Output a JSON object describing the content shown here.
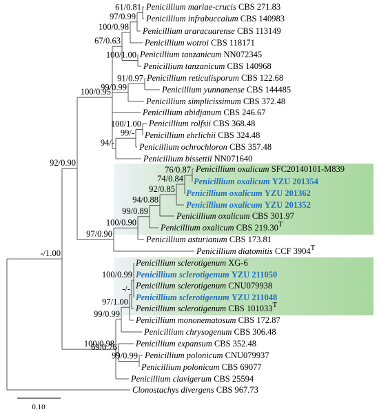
{
  "leaves": [
    {
      "name": "Penicillium mariae-crucis",
      "strain": "CBS 271.83"
    },
    {
      "name": "Penicillium infrabuccalum",
      "strain": "CBS 140983"
    },
    {
      "name": "Penicillium araracuarense",
      "strain": "CBS 113149"
    },
    {
      "name": "Penicillium wotroi",
      "strain": "CBS 118171"
    },
    {
      "name": "Penicillium tanzanicum",
      "strain": "NN072345"
    },
    {
      "name": "Penicillium tanzanicum",
      "strain": "CBS 140968"
    },
    {
      "name": "Penicillium reticulisporum",
      "strain": "CBS 122.68"
    },
    {
      "name": "Penicillium yunnanense",
      "strain": "CBS 144485"
    },
    {
      "name": "Penicillium simplicissimum",
      "strain": "CBS 372.48"
    },
    {
      "name": "Penicillium abidjanum",
      "strain": "CBS 246.67"
    },
    {
      "name": "Penicillium rolfsii",
      "strain": "CBS 368.48"
    },
    {
      "name": "Penicillium ehrlichii",
      "strain": "CBS 324.48"
    },
    {
      "name": "Penicillium ochrochloron",
      "strain": "CBS 357.48"
    },
    {
      "name": "Penicillium bissettii",
      "strain": "NN071640"
    },
    {
      "name": "Penicillium oxalicum",
      "strain": "SFC20140101-M839"
    },
    {
      "name": "Penicillium oxalicum",
      "strain": "YZU 201354",
      "highlighted": true
    },
    {
      "name": "Penicillium oxalicum",
      "strain": "YZU 201362",
      "highlighted": true
    },
    {
      "name": "Penicillium oxalicum",
      "strain": "YZU 201352",
      "highlighted": true
    },
    {
      "name": "Penicillium oxalicum",
      "strain": "CBS 301.97"
    },
    {
      "name": "Penicillium oxalicum",
      "strain": "CBS 219.30",
      "type_strain": "T"
    },
    {
      "name": "Penicillium asturianum",
      "strain": "CBS 173.81"
    },
    {
      "name": "Penicillium diatomitis",
      "strain": "CCF 3904",
      "type_strain": "T"
    },
    {
      "name": "Penicillium sclerotigenum",
      "strain": "XG-6"
    },
    {
      "name": "Penicillium sclerotigenum",
      "strain": "YZU 211050",
      "highlighted": true
    },
    {
      "name": "Penicillium sclerotigenum",
      "strain": "CNU079938"
    },
    {
      "name": "Penicillium sclerotigenum",
      "strain": "YZU 211048",
      "highlighted": true
    },
    {
      "name": "Penicillium sclerotigenum",
      "strain": "CBS 101033",
      "type_strain": "T"
    },
    {
      "name": "Penicillium mononematosum",
      "strain": "CBS 172.87"
    },
    {
      "name": "Penicillium chrysogenum",
      "strain": "CBS 306.48"
    },
    {
      "name": "Penicillium expansum",
      "strain": "CBS 352.48"
    },
    {
      "name": "Penicillium polonicum",
      "strain": "CNU079937"
    },
    {
      "name": "Penicillium polonicum",
      "strain": "CBS 69077"
    },
    {
      "name": "Penicillium clavigerum",
      "strain": "CBS 25594"
    },
    {
      "name": "Clonostachys divergens",
      "strain": "CBS 967.73"
    }
  ],
  "support_values": [
    "61/0.81",
    "97/0.99",
    "100/0.98",
    "100/1.00",
    "67/0.63",
    "91/0.97",
    "99/0.99",
    "100/0.95",
    "100/1.00",
    "99/-",
    "94/-",
    "92/0.90",
    "76/0.87",
    "74/0.84",
    "92/0.85",
    "94/0.88",
    "99/0.89",
    "100/0.90",
    "97/0.90",
    "-/1.00",
    "100/0.99",
    "-/-",
    "97/1.00",
    "99/0.99",
    "100/0.98",
    "69/0.76",
    "99/0.99"
  ],
  "scale_bar": "0.10"
}
